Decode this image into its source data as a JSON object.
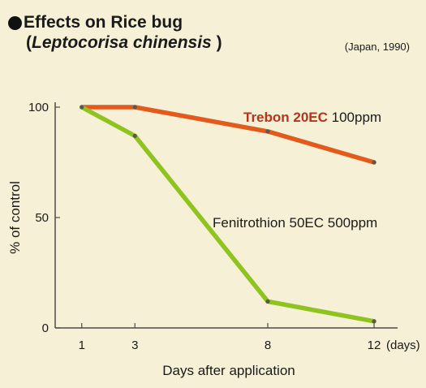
{
  "header": {
    "title_bullet": "●",
    "title_main": "Effects on Rice bug",
    "title_paren_open": "(",
    "title_species": "Leptocorisa chinensis",
    "title_paren_close": " )",
    "source": "(Japan, 1990)"
  },
  "colors": {
    "trebon": "#e25a1c",
    "fenitrothion": "#8fc31f",
    "axis": "#4a4a4a",
    "background": "#f6f0d6"
  },
  "chart_data": {
    "type": "line",
    "title": "Effects on Rice bug (Leptocorisa chinensis)",
    "xlabel": "Days after application",
    "ylabel": "% of control",
    "x_unit": "(days)",
    "x": [
      1,
      3,
      8,
      12
    ],
    "x_ticks": [
      "1",
      "3",
      "8",
      "12"
    ],
    "y_ticks": [
      "0",
      "50",
      "100"
    ],
    "ylim": [
      0,
      100
    ],
    "grid": false,
    "series": [
      {
        "name_bold": "Trebon 20EC",
        "name_rest": " 100ppm",
        "color": "#e25a1c",
        "values": [
          100,
          100,
          89,
          75
        ]
      },
      {
        "name_bold": "",
        "name_rest": "Fenitrothion 50EC 500ppm",
        "color": "#8fc31f",
        "values": [
          100,
          87,
          12,
          3
        ]
      }
    ]
  }
}
